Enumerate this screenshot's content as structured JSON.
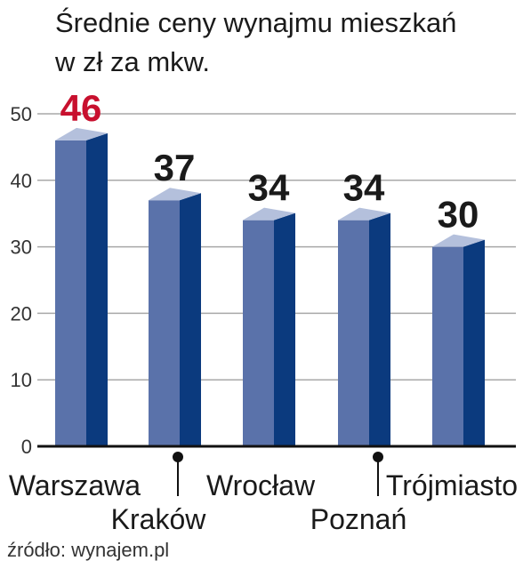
{
  "chart_data": {
    "type": "bar",
    "title": [
      "Średnie ceny wynajmu mieszkań",
      "w zł za mkw."
    ],
    "categories": [
      "Warszawa",
      "Kraków",
      "Wrocław",
      "Poznań",
      "Trójmiasto"
    ],
    "values": [
      46,
      37,
      34,
      34,
      30
    ],
    "value_labels": [
      "46",
      "37",
      "34",
      "34",
      "30"
    ],
    "ylim": [
      0,
      50
    ],
    "yticks": [
      0,
      10,
      20,
      30,
      40,
      50
    ],
    "ytick_labels": [
      "0",
      "10",
      "20",
      "30",
      "40",
      "50"
    ],
    "grid": true,
    "legend": "none",
    "source": "źródło: wynajem.pl",
    "colors": {
      "bar_front": "#5a72aa",
      "bar_side": "#0b3a7e",
      "bar_top": "#b4c0dc",
      "highlight_label": "#c8102e",
      "label": "#1a1a1a",
      "grid": "#a8a8a8"
    }
  }
}
